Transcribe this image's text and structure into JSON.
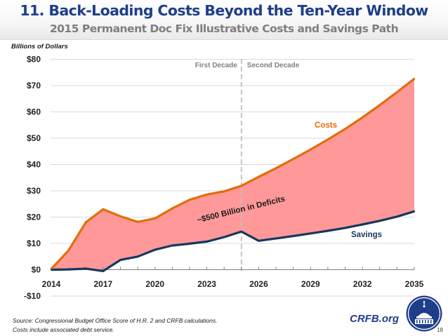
{
  "header": {
    "title": "11. Back-Loading Costs Beyond the Ten-Year Window",
    "subtitle": "2015 Permanent Doc Fix Illustrative Costs and Savings Path"
  },
  "chart_data": {
    "type": "area",
    "title": "11. Back-Loading Costs Beyond the Ten-Year Window",
    "subtitle": "2015 Permanent Doc Fix Illustrative Costs and Savings Path",
    "ylabel": "Billions of Dollars",
    "xlabel": "",
    "ylim": [
      -10,
      80
    ],
    "xlim": [
      2014,
      2035
    ],
    "grid": true,
    "y_ticks": [
      80,
      70,
      60,
      50,
      40,
      30,
      20,
      10,
      0,
      -10
    ],
    "y_tick_labels": [
      "$80",
      "$70",
      "$60",
      "$50",
      "$40",
      "$30",
      "$20",
      "$10",
      "$0",
      "-$10"
    ],
    "x_ticks": [
      2014,
      2017,
      2020,
      2023,
      2026,
      2029,
      2032,
      2035
    ],
    "x_tick_labels": [
      "2014",
      "2017",
      "2020",
      "2023",
      "2026",
      "2029",
      "2032",
      "2035"
    ],
    "x": [
      2014,
      2015,
      2016,
      2017,
      2018,
      2019,
      2020,
      2021,
      2022,
      2023,
      2024,
      2025,
      2026,
      2027,
      2028,
      2029,
      2030,
      2031,
      2032,
      2033,
      2034,
      2035
    ],
    "series": [
      {
        "name": "Costs",
        "color": "#e46c0a",
        "values": [
          0.3,
          7.3,
          18.0,
          23.0,
          20.3,
          18.2,
          19.5,
          23.3,
          26.6,
          28.6,
          29.8,
          31.9,
          35.3,
          38.6,
          42.1,
          45.7,
          49.5,
          53.5,
          57.9,
          62.6,
          67.5,
          72.6
        ]
      },
      {
        "name": "Savings",
        "color": "#17375e",
        "values": [
          0.0,
          0.1,
          0.4,
          -0.5,
          3.7,
          5.0,
          7.6,
          9.2,
          9.9,
          10.7,
          12.4,
          14.5,
          11.0,
          11.9,
          12.8,
          13.8,
          14.8,
          15.9,
          17.2,
          18.6,
          20.2,
          22.2
        ]
      }
    ],
    "fill_between": {
      "color": "#ff9999",
      "label": "~$500 Billion in Deficits"
    },
    "divider": {
      "x": 2025.0,
      "left_label": "First Decade",
      "right_label": "Second Decade"
    },
    "series_labels": {
      "costs": "Costs",
      "savings": "Savings"
    },
    "annotation": "~$500 Billion in Deficits"
  },
  "footer": {
    "source_line1": "Source: Congressional Budget Office Score of H.R. 2 and CRFB calculations.",
    "source_line2": "Costs include associated debt service.",
    "brand": "CRFB.org",
    "page_number": "18"
  },
  "logo": {
    "name": "crfb-capitol-logo",
    "color": "#1f3e8a"
  }
}
